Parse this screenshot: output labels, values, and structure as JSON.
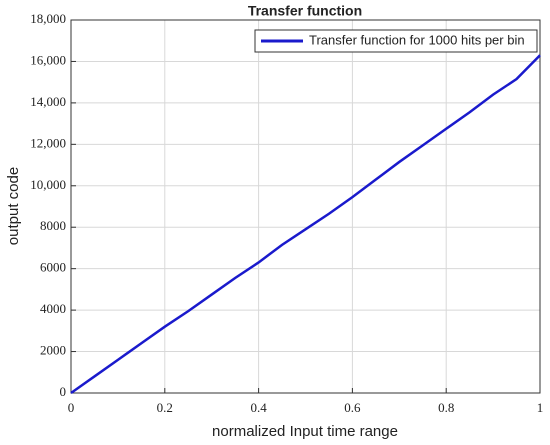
{
  "chart_data": {
    "type": "line",
    "title": "Transfer function",
    "xlabel": "normalized Input time range",
    "ylabel": "output code",
    "x": [
      0,
      0.05,
      0.1,
      0.15,
      0.2,
      0.25,
      0.3,
      0.35,
      0.4,
      0.45,
      0.5,
      0.55,
      0.6,
      0.65,
      0.7,
      0.75,
      0.8,
      0.85,
      0.9,
      0.95,
      1.0
    ],
    "series": [
      {
        "name": "Transfer function for 1000 hits per bin",
        "color": "#1a1acc",
        "values": [
          0,
          800,
          1600,
          2400,
          3200,
          3950,
          4750,
          5550,
          6300,
          7150,
          7900,
          8650,
          9450,
          10300,
          11150,
          11950,
          12750,
          13550,
          14400,
          15150,
          16300
        ]
      }
    ],
    "xlim": [
      0,
      1
    ],
    "xticks": [
      0,
      0.2,
      0.4,
      0.6,
      0.8,
      1
    ],
    "ylim": [
      0,
      18000
    ],
    "yticks": [
      0,
      2000,
      4000,
      6000,
      8000,
      {
        "value": 10000,
        "label": "10,000"
      },
      {
        "value": 12000,
        "label": "12,000"
      },
      {
        "value": 14000,
        "label": "14,000"
      },
      {
        "value": 16000,
        "label": "16,000"
      },
      {
        "value": 18000,
        "label": "18,000"
      }
    ],
    "grid": true,
    "legend": "upper right"
  }
}
